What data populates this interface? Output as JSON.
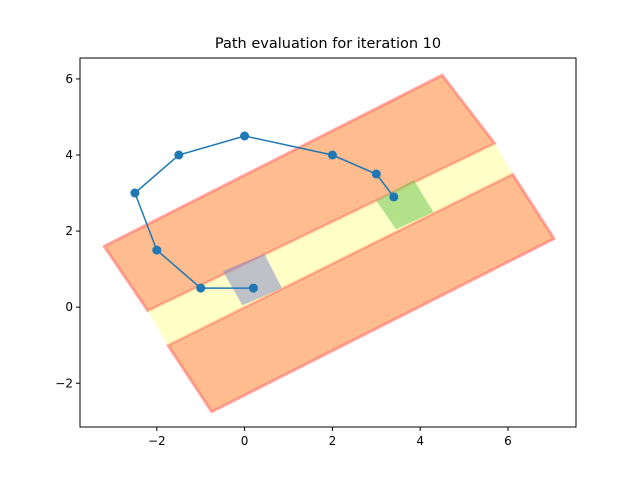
{
  "chart_data": {
    "type": "line",
    "title": "Path evaluation for iteration 10",
    "xlabel": "",
    "ylabel": "",
    "xlim": [
      -3.75,
      7.55
    ],
    "ylim": [
      -3.15,
      6.55
    ],
    "xticks": [
      -2,
      0,
      2,
      4,
      6
    ],
    "yticks": [
      -2,
      0,
      2,
      4,
      6
    ],
    "xtick_labels": [
      "−2",
      "0",
      "2",
      "4",
      "6"
    ],
    "ytick_labels": [
      "−2",
      "0",
      "2",
      "4",
      "6"
    ],
    "grid": false,
    "path": {
      "name": "path",
      "color": "#1f77b4",
      "x": [
        0.2,
        -1.0,
        -2.0,
        -2.5,
        -1.5,
        0.0,
        2.0,
        3.0,
        3.4
      ],
      "y": [
        0.5,
        0.5,
        1.5,
        3.0,
        4.0,
        4.5,
        4.0,
        3.5,
        2.9
      ]
    },
    "regions": [
      {
        "name": "upper-obstacle",
        "fill": "#ffa060",
        "fill_opacity": 0.7,
        "edge": "#ff6060",
        "edge_opacity": 0.5,
        "corners": [
          [
            -3.2,
            1.6
          ],
          [
            4.5,
            6.1
          ],
          [
            5.7,
            4.3
          ],
          [
            -2.2,
            -0.1
          ]
        ]
      },
      {
        "name": "lower-obstacle",
        "fill": "#ffa060",
        "fill_opacity": 0.7,
        "edge": "#ff6060",
        "edge_opacity": 0.5,
        "corners": [
          [
            -1.75,
            -1.0
          ],
          [
            6.1,
            3.5
          ],
          [
            7.05,
            1.8
          ],
          [
            -0.75,
            -2.75
          ]
        ]
      },
      {
        "name": "corridor",
        "fill": "#ffff99",
        "fill_opacity": 0.55,
        "edge": "none",
        "edge_opacity": 0,
        "corners": [
          [
            -2.2,
            -0.1
          ],
          [
            5.7,
            4.3
          ],
          [
            6.1,
            3.5
          ],
          [
            -1.75,
            -1.0
          ]
        ]
      },
      {
        "name": "start-zone",
        "fill": "#8890c8",
        "fill_opacity": 0.55,
        "edge": "none",
        "edge_opacity": 0,
        "corners": [
          [
            -0.5,
            0.95
          ],
          [
            0.45,
            1.4
          ],
          [
            0.85,
            0.5
          ],
          [
            -0.05,
            0.05
          ]
        ]
      },
      {
        "name": "goal-zone",
        "fill": "#80cc60",
        "fill_opacity": 0.6,
        "edge": "none",
        "edge_opacity": 0,
        "corners": [
          [
            3.0,
            2.8
          ],
          [
            3.85,
            3.35
          ],
          [
            4.3,
            2.5
          ],
          [
            3.45,
            2.05
          ]
        ]
      }
    ]
  }
}
